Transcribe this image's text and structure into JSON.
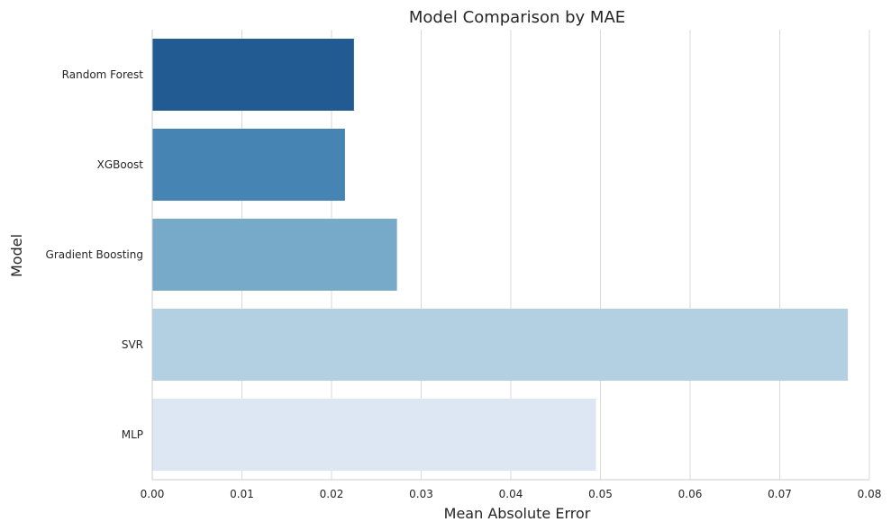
{
  "chart_data": {
    "type": "bar",
    "orientation": "horizontal",
    "title": "Model Comparison by MAE",
    "xlabel": "Mean Absolute Error",
    "ylabel": "Model",
    "categories": [
      "Random Forest",
      "XGBoost",
      "Gradient Boosting",
      "SVR",
      "MLP"
    ],
    "values": [
      0.0225,
      0.0215,
      0.0273,
      0.0776,
      0.0495
    ],
    "colors": [
      "#225b91",
      "#4684b3",
      "#77a9c9",
      "#b3cfe2",
      "#dce7f3"
    ],
    "xlim": [
      0,
      0.08
    ],
    "xticks": [
      0.0,
      0.01,
      0.02,
      0.03,
      0.04,
      0.05,
      0.06,
      0.07,
      0.08
    ],
    "xtick_labels": [
      "0.00",
      "0.01",
      "0.02",
      "0.03",
      "0.04",
      "0.05",
      "0.06",
      "0.07",
      "0.08"
    ],
    "grid": "vertical",
    "legend": "none"
  }
}
